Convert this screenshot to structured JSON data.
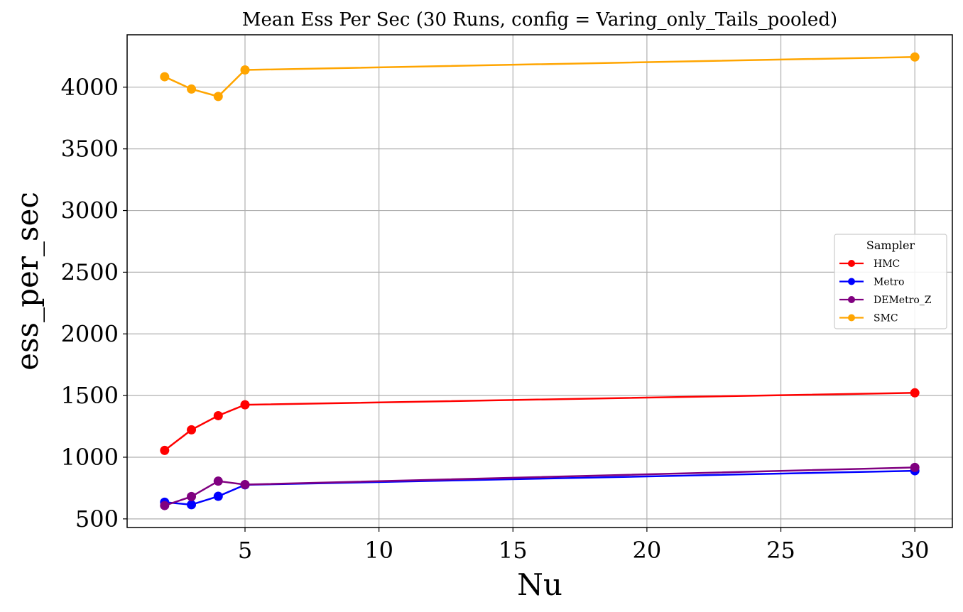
{
  "chart_data": {
    "type": "line",
    "title": "Mean Ess Per Sec (30 Runs, config = Varing_only_Tails_pooled)",
    "xlabel": "Nu",
    "ylabel": "ess_per_sec",
    "x": [
      2,
      3,
      4,
      5,
      30
    ],
    "xlim": [
      0.6,
      31.4
    ],
    "ylim": [
      430,
      4425
    ],
    "xticks": [
      5,
      10,
      15,
      20,
      25,
      30
    ],
    "xtick_labels": [
      "5",
      "10",
      "15",
      "20",
      "25",
      "30"
    ],
    "yticks": [
      500,
      1000,
      1500,
      2000,
      2500,
      3000,
      3500,
      4000
    ],
    "ytick_labels": [
      "500",
      "1000",
      "1500",
      "2000",
      "2500",
      "3000",
      "3500",
      "4000"
    ],
    "grid": true,
    "legend": {
      "title": "Sampler",
      "placement": "center-right"
    },
    "series": [
      {
        "name": "HMC",
        "color": "#ff0000",
        "values": [
          1055,
          1222,
          1337,
          1425,
          1522
        ]
      },
      {
        "name": "Metro",
        "color": "#0000ff",
        "values": [
          635,
          615,
          683,
          776,
          890
        ]
      },
      {
        "name": "DEMetro_Z",
        "color": "#800080",
        "values": [
          608,
          681,
          806,
          778,
          917
        ]
      },
      {
        "name": "SMC",
        "color": "#ffa500",
        "values": [
          4085,
          3985,
          3925,
          4140,
          4245
        ]
      }
    ]
  }
}
